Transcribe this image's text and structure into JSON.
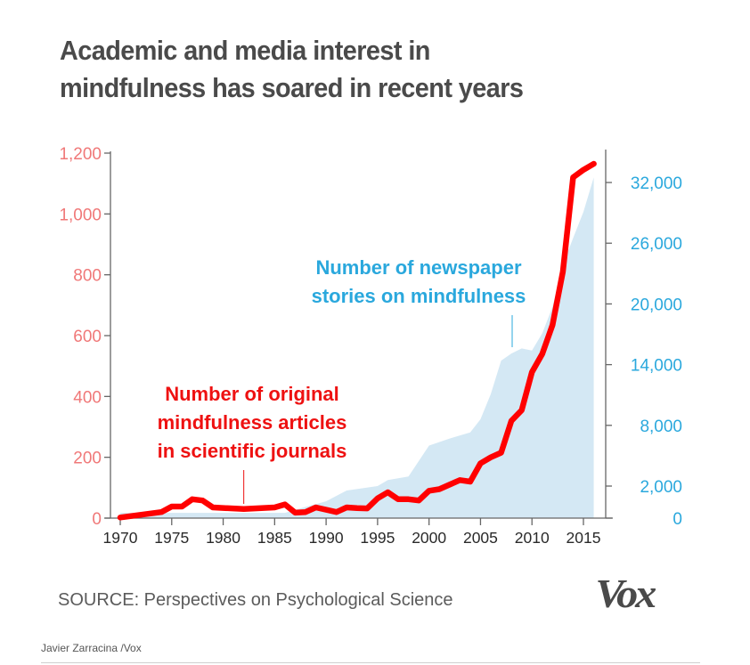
{
  "title": {
    "line1": "Academic and media interest in",
    "line2": "mindfulness has soared in recent years"
  },
  "source": "SOURCE: Perspectives on Psychological Science",
  "logo": "Vox",
  "credit": "Javier Zarracina /Vox",
  "colors": {
    "red_series": "#ff0000",
    "red_axis_text": "#f07878",
    "blue_area": "#d4e8f4",
    "blue_text": "#2aa8dd",
    "axis": "#666666",
    "title": "#4a4a4a"
  },
  "chart_data": {
    "type": "line",
    "title": "Academic and media interest in mindfulness has soared in recent years",
    "xlabel": "",
    "x_ticks": [
      1970,
      1975,
      1980,
      1985,
      1990,
      1995,
      2000,
      2005,
      2010,
      2015
    ],
    "x_tick_labels": [
      "1970",
      "1975",
      "1980",
      "1985",
      "1990",
      "1995",
      "2000",
      "2005",
      "2010",
      "2015"
    ],
    "xlim": [
      1970,
      2016
    ],
    "left_axis": {
      "label": "Number of original mindfulness articles in scientific journals",
      "ticks": [
        0,
        200,
        400,
        600,
        800,
        1000,
        1200
      ],
      "tick_labels": [
        "0",
        "200",
        "400",
        "600",
        "800",
        "1,000",
        "1,200"
      ],
      "ylim": [
        0,
        1200
      ]
    },
    "right_axis": {
      "label": "Number of newspaper stories on mindfulness",
      "ticks": [
        0,
        2000,
        8000,
        14000,
        20000,
        26000,
        32000
      ],
      "tick_labels": [
        "0",
        "2,000",
        "8,000",
        "14,000",
        "20,000",
        "26,000",
        "32,000"
      ],
      "ylim": [
        0,
        34000
      ]
    },
    "grid": false,
    "series": [
      {
        "name": "Number of original mindfulness articles in scientific journals",
        "type": "line",
        "axis": "left",
        "x": [
          1970,
          1974,
          1975,
          1976,
          1977,
          1978,
          1979,
          1982,
          1985,
          1986,
          1987,
          1988,
          1989,
          1991,
          1992,
          1993,
          1994,
          1995,
          1996,
          1997,
          1998,
          1999,
          2000,
          2001,
          2002,
          2003,
          2004,
          2005,
          2006,
          2007,
          2008,
          2009,
          2010,
          2011,
          2012,
          2013,
          2014,
          2015,
          2016
        ],
        "values": [
          2,
          20,
          38,
          38,
          62,
          58,
          35,
          30,
          35,
          45,
          18,
          20,
          35,
          20,
          35,
          33,
          32,
          65,
          85,
          62,
          62,
          58,
          90,
          95,
          110,
          125,
          120,
          180,
          200,
          215,
          320,
          355,
          480,
          540,
          635,
          810,
          1120,
          1145,
          1165
        ]
      },
      {
        "name": "Number of newspaper stories on mindfulness",
        "type": "area",
        "axis": "right",
        "x": [
          1970,
          1986,
          1988,
          1990,
          1992,
          1995,
          1996,
          1998,
          2000,
          2002,
          2004,
          2005,
          2006,
          2007,
          2008,
          2009,
          2010,
          2011,
          2012,
          2013,
          2014,
          2015,
          2016
        ],
        "values": [
          330,
          330,
          700,
          1050,
          1720,
          2000,
          2600,
          2950,
          6000,
          6700,
          7300,
          8600,
          11100,
          14400,
          15100,
          15600,
          15400,
          17100,
          19700,
          23900,
          26500,
          29100,
          32500
        ]
      }
    ],
    "annotations": [
      {
        "text_lines": [
          "Number of original",
          "mindfulness articles",
          "in scientific journals"
        ],
        "color": "red",
        "points_to_year": 1982
      },
      {
        "text_lines": [
          "Number of newspaper",
          "stories on mindfulness"
        ],
        "color": "blue",
        "points_to_year": 2008
      }
    ]
  }
}
